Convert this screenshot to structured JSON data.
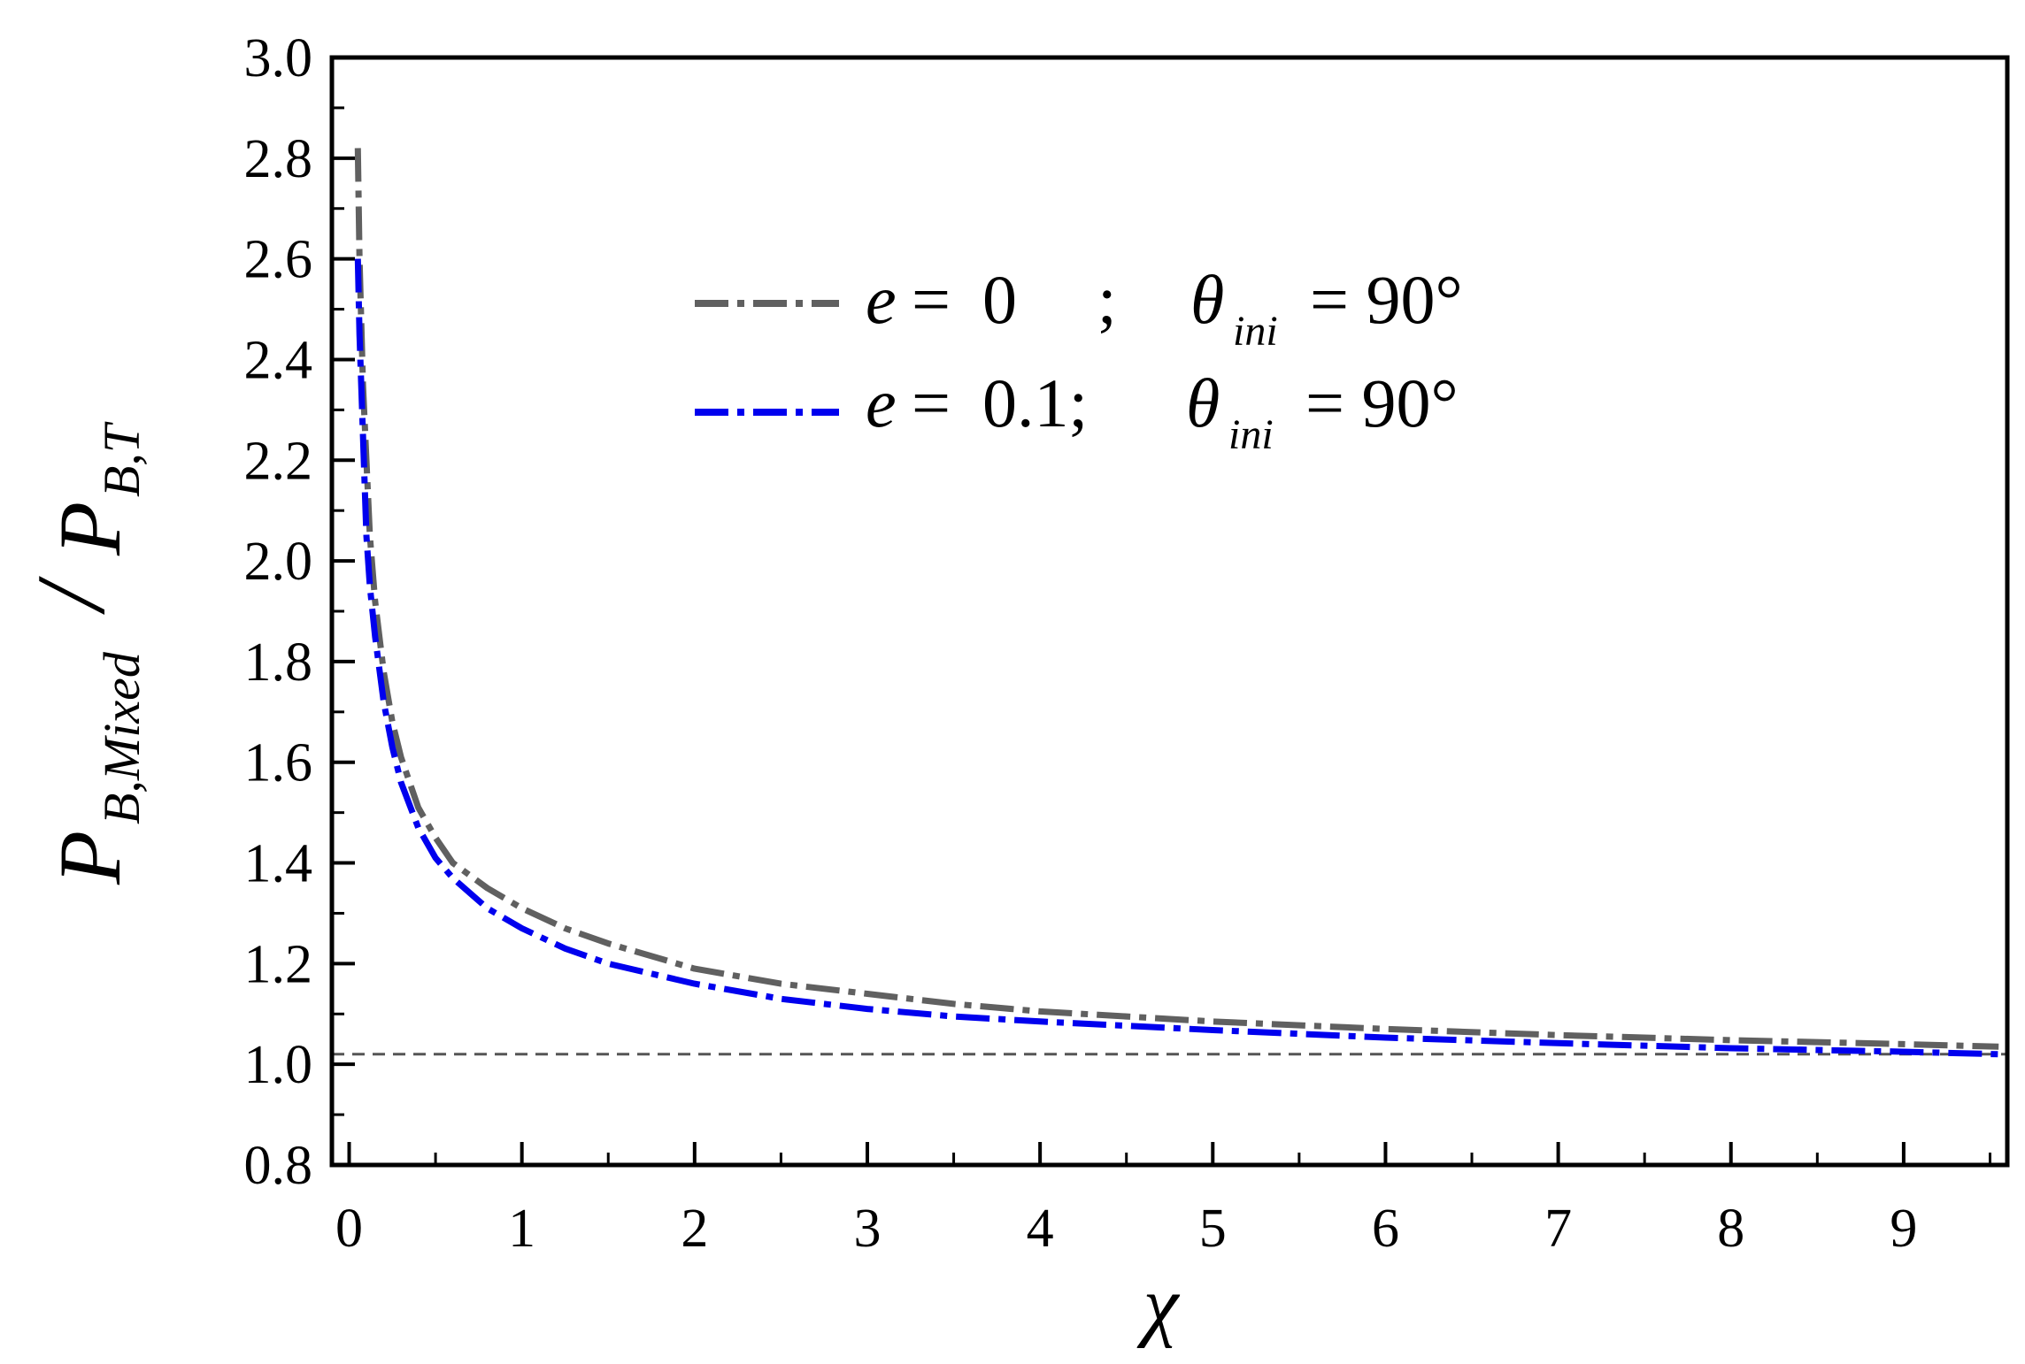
{
  "chart_data": {
    "type": "line",
    "title": "",
    "xlabel": "χ",
    "ylabel": {
      "main": "P",
      "main_sub": "B,Mixed",
      "slash": "/",
      "denom": "P",
      "denom_sub": "B,T"
    },
    "xlim": [
      -0.1,
      9.6
    ],
    "ylim": [
      0.8,
      3.0
    ],
    "xticks": [
      0,
      1,
      2,
      3,
      4,
      5,
      6,
      7,
      8,
      9
    ],
    "yticks": [
      0.8,
      1.0,
      1.2,
      1.4,
      1.6,
      1.8,
      2.0,
      2.2,
      2.4,
      2.6,
      2.8,
      3.0
    ],
    "xtick_labels": [
      "0",
      "1",
      "2",
      "3",
      "4",
      "5",
      "6",
      "7",
      "8",
      "9"
    ],
    "ytick_labels": [
      "0.8",
      "1.0",
      "1.2",
      "1.4",
      "1.6",
      "1.8",
      "2.0",
      "2.2",
      "2.4",
      "2.6",
      "2.8",
      "3.0"
    ],
    "grid": false,
    "legend_position": "top-center",
    "reference_line": {
      "y": 1.02,
      "style": "dashed",
      "color": "#555555"
    },
    "series": [
      {
        "label_var": "e",
        "label_eq": "=",
        "label_val": "0",
        "label_sep": ";",
        "label_theta": "θ",
        "label_theta_sub": "ini",
        "label_theta_val": "= 90°",
        "color": "#606060",
        "style": "dash-dot",
        "x": [
          0.05,
          0.06,
          0.08,
          0.1,
          0.12,
          0.15,
          0.2,
          0.25,
          0.3,
          0.4,
          0.5,
          0.6,
          0.8,
          1.0,
          1.25,
          1.5,
          2.0,
          2.5,
          3.0,
          3.5,
          4.0,
          5.0,
          6.0,
          7.0,
          8.0,
          9.0,
          9.55
        ],
        "y": [
          2.82,
          2.6,
          2.35,
          2.2,
          2.05,
          1.92,
          1.78,
          1.68,
          1.61,
          1.51,
          1.45,
          1.4,
          1.35,
          1.31,
          1.27,
          1.24,
          1.19,
          1.16,
          1.14,
          1.12,
          1.105,
          1.085,
          1.07,
          1.058,
          1.048,
          1.04,
          1.035
        ]
      },
      {
        "label_var": "e",
        "label_eq": "=",
        "label_val": "0.1;",
        "label_sep": "",
        "label_theta": "θ",
        "label_theta_sub": "ini",
        "label_theta_val": "= 90°",
        "color": "#0000ee",
        "style": "dash-dot",
        "x": [
          0.05,
          0.06,
          0.08,
          0.1,
          0.12,
          0.15,
          0.2,
          0.25,
          0.3,
          0.4,
          0.5,
          0.6,
          0.8,
          1.0,
          1.25,
          1.5,
          2.0,
          2.5,
          3.0,
          3.5,
          4.0,
          5.0,
          6.0,
          7.0,
          8.0,
          9.0,
          9.55
        ],
        "y": [
          2.6,
          2.45,
          2.25,
          2.05,
          1.95,
          1.85,
          1.72,
          1.63,
          1.56,
          1.47,
          1.41,
          1.37,
          1.31,
          1.27,
          1.23,
          1.2,
          1.16,
          1.13,
          1.11,
          1.095,
          1.085,
          1.068,
          1.053,
          1.042,
          1.032,
          1.025,
          1.02
        ]
      }
    ]
  }
}
